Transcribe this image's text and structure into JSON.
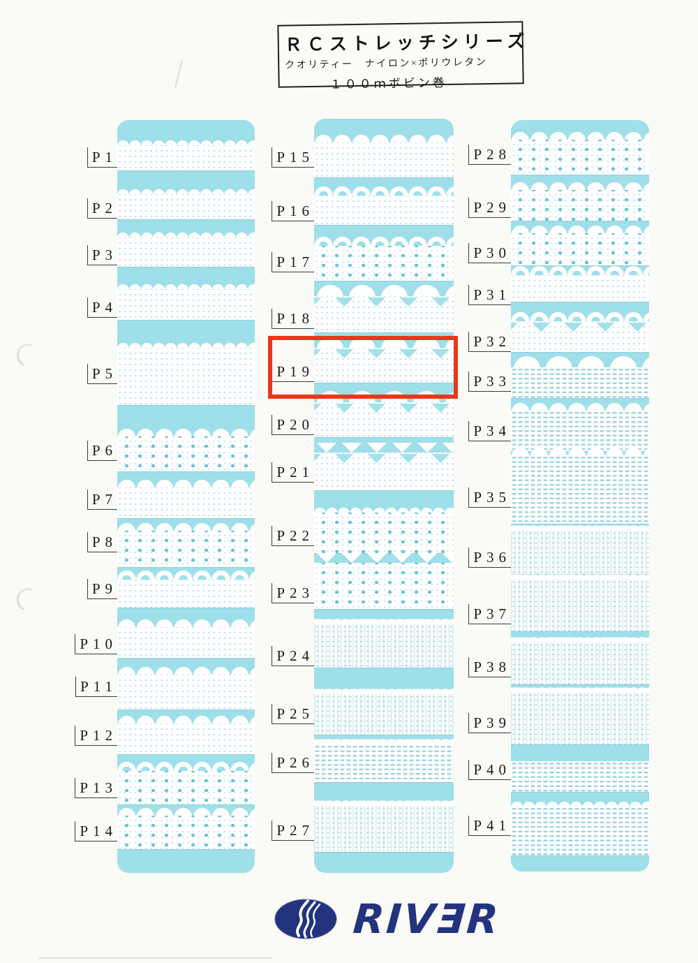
{
  "title_box": {
    "series": "ＲＣストレッチシリーズ",
    "quality": "クオリティー　ナイロン×ポリウレタン",
    "winding": "１００ｍボビン巻"
  },
  "colors": {
    "panel_blue": "#9EDFE9",
    "highlight_red": "#E8381B",
    "logo_navy": "#23337E"
  },
  "columns": [
    {
      "samples": [
        {
          "label": "P1",
          "pattern": "scallop-small"
        },
        {
          "label": "P2",
          "pattern": "scallop-small"
        },
        {
          "label": "P3",
          "pattern": "scallop-small"
        },
        {
          "label": "P4",
          "pattern": "scallop-small"
        },
        {
          "label": "P5",
          "pattern": "scallop-small"
        },
        {
          "label": "P6",
          "pattern": "scallop-eyelet"
        },
        {
          "label": "P7",
          "pattern": "scallop-medium"
        },
        {
          "label": "P8",
          "pattern": "scallop-eyelet"
        },
        {
          "label": "P9",
          "pattern": "loop"
        },
        {
          "label": "P10",
          "pattern": "scallop-medium"
        },
        {
          "label": "P11",
          "pattern": "scallop-medium"
        },
        {
          "label": "P12",
          "pattern": "scallop-medium"
        },
        {
          "label": "P13",
          "pattern": "loop-eyelet"
        },
        {
          "label": "P14",
          "pattern": "scallop-eyelet"
        }
      ]
    },
    {
      "samples": [
        {
          "label": "P15",
          "pattern": "scallop-medium"
        },
        {
          "label": "P16",
          "pattern": "loop"
        },
        {
          "label": "P17",
          "pattern": "loop-eyelet"
        },
        {
          "label": "P18",
          "pattern": "scallop-large"
        },
        {
          "label": "P19",
          "pattern": "scallop-large"
        },
        {
          "label": "P20",
          "pattern": "scallop-large"
        },
        {
          "label": "P21",
          "pattern": "zigzag"
        },
        {
          "label": "P22",
          "pattern": "scallop-small-eyelet"
        },
        {
          "label": "P23",
          "pattern": "zigzag-eyelet"
        },
        {
          "label": "P24",
          "pattern": "fringe"
        },
        {
          "label": "P25",
          "pattern": "fringe"
        },
        {
          "label": "P26",
          "pattern": "fringe-mesh"
        },
        {
          "label": "P27",
          "pattern": "fringe"
        }
      ]
    },
    {
      "samples": [
        {
          "label": "P28",
          "pattern": "scallop-eyelet"
        },
        {
          "label": "P29",
          "pattern": "scallop-eyelet"
        },
        {
          "label": "P30",
          "pattern": "scallop-eyelet"
        },
        {
          "label": "P31",
          "pattern": "loop"
        },
        {
          "label": "P32",
          "pattern": "loop-triangle"
        },
        {
          "label": "P33",
          "pattern": "scallop-large-mesh"
        },
        {
          "label": "P34",
          "pattern": "scallop-mesh"
        },
        {
          "label": "P35",
          "pattern": "scallop-mesh"
        },
        {
          "label": "P36",
          "pattern": "fringe"
        },
        {
          "label": "P37",
          "pattern": "fringe"
        },
        {
          "label": "P38",
          "pattern": "fringe"
        },
        {
          "label": "P39",
          "pattern": "fringe"
        },
        {
          "label": "P40",
          "pattern": "mesh-braid"
        },
        {
          "label": "P41",
          "pattern": "scallop-small-mesh"
        }
      ]
    }
  ],
  "highlight": {
    "target_label": "P19"
  },
  "logo": {
    "text": "RIVER",
    "display": "RIVƎR"
  }
}
